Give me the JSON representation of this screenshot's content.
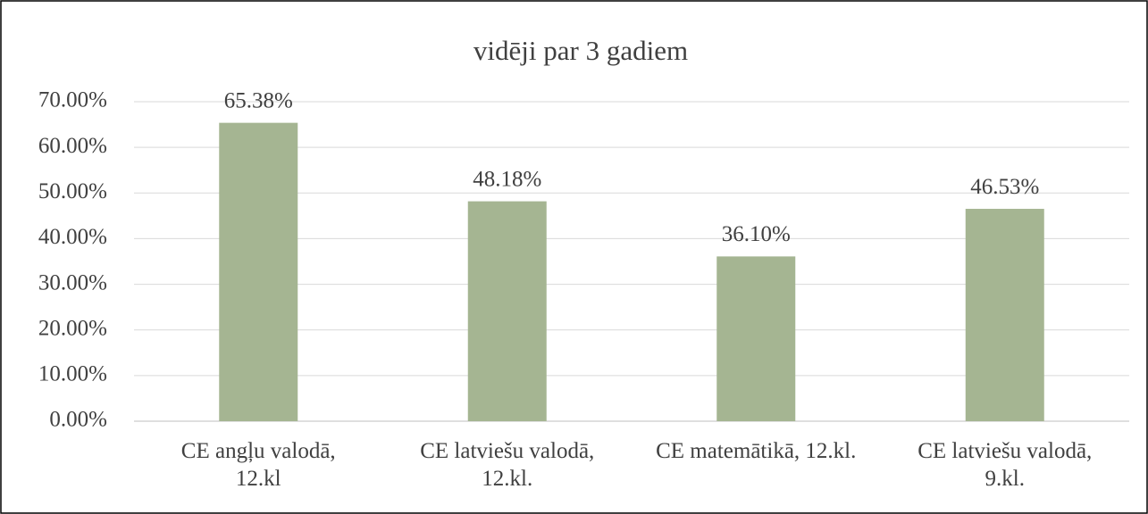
{
  "chart_data": {
    "type": "bar",
    "title": "vidēji par 3 gadiem",
    "categories": [
      "CE angļu valodā, 12.kl",
      "CE latviešu valodā, 12.kl.",
      "CE matemātikā, 12.kl.",
      "CE latviešu valodā, 9.kl."
    ],
    "values": [
      65.38,
      48.18,
      36.1,
      46.53
    ],
    "value_labels": [
      "65.38%",
      "48.18%",
      "36.10%",
      "46.53%"
    ],
    "color": "#a5b592",
    "ylim": [
      0,
      70
    ],
    "yticks": [
      {
        "value": 0,
        "label": "0.00%"
      },
      {
        "value": 10,
        "label": "10.00%"
      },
      {
        "value": 20,
        "label": "20.00%"
      },
      {
        "value": 30,
        "label": "30.00%"
      },
      {
        "value": 40,
        "label": "40.00%"
      },
      {
        "value": 50,
        "label": "50.00%"
      },
      {
        "value": 60,
        "label": "60.00%"
      },
      {
        "value": 70,
        "label": "70.00%"
      }
    ],
    "grid": true
  }
}
